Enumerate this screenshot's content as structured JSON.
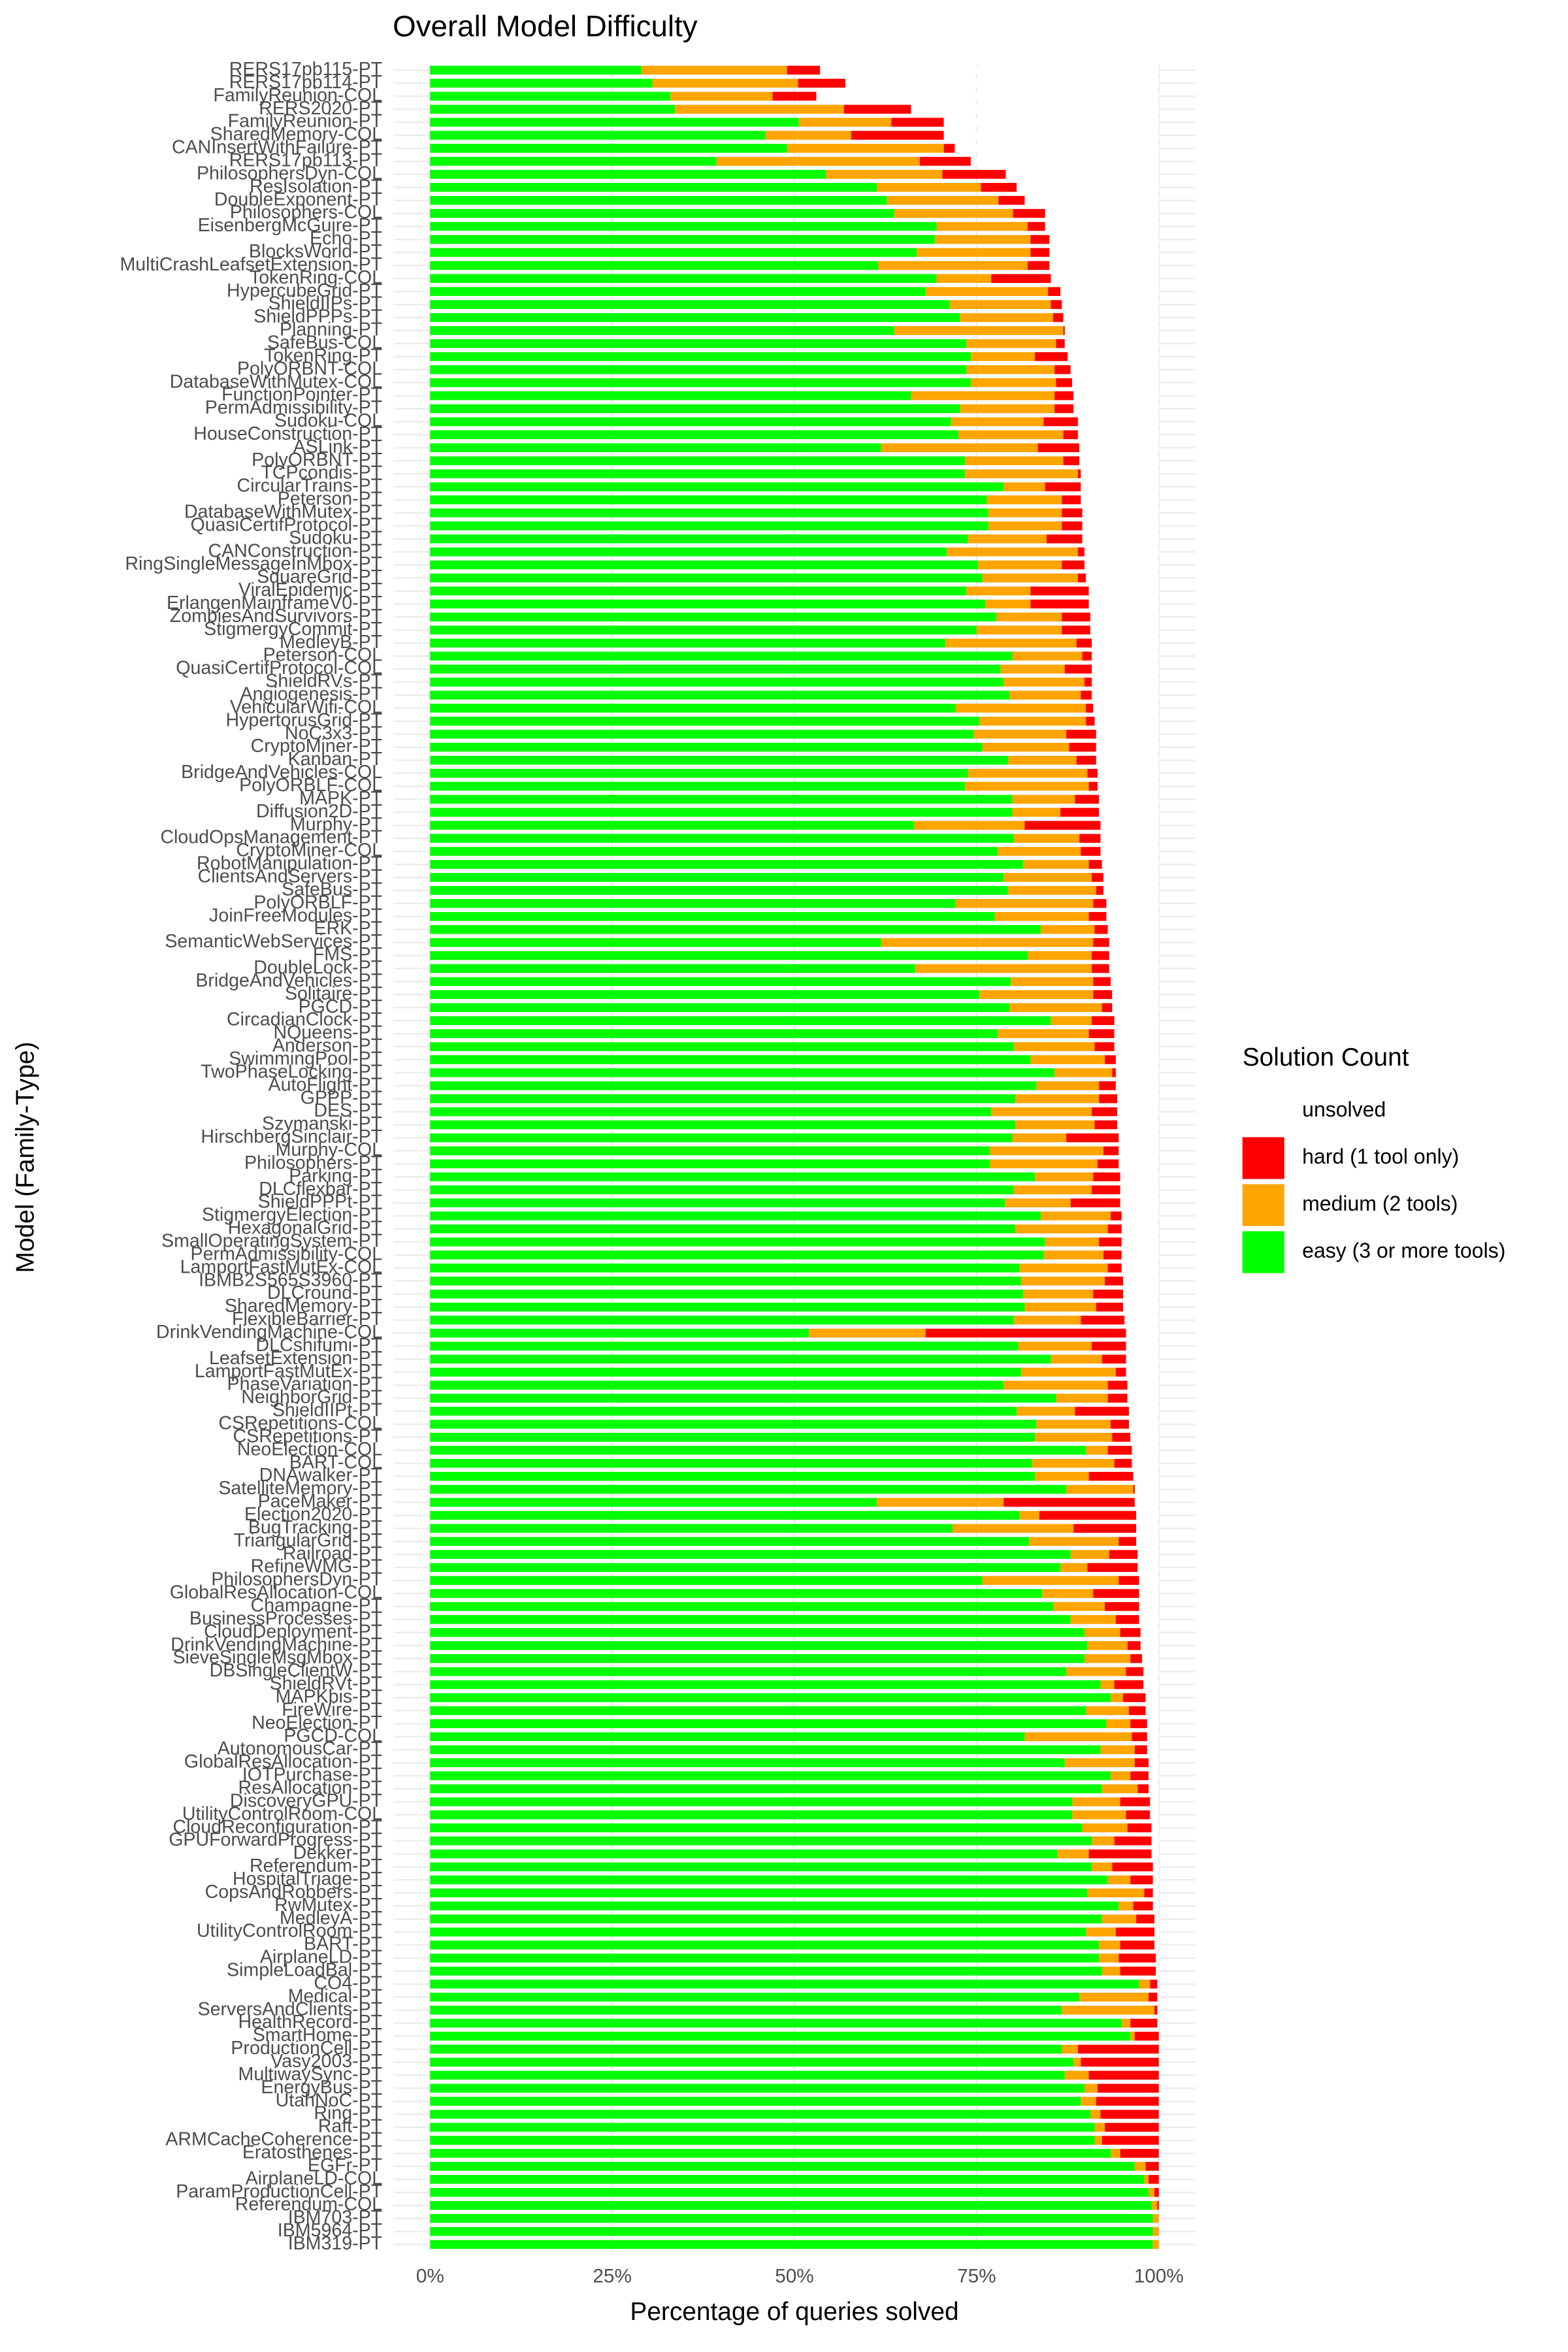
{
  "chart_data": {
    "type": "stacked_barh",
    "title": "Overall Model Difficulty",
    "x_label": "Percentage of queries solved",
    "y_label": "Model (Family-Type)",
    "legend_title": "Solution Count",
    "legend": "right",
    "grid": true,
    "categories": [
      "RERS17pb115-PT",
      "RERS17pb114-PT",
      "FamilyReunion-COL",
      "RERS2020-PT",
      "FamilyReunion-PT",
      "SharedMemory-COL",
      "CANInsertWithFailure-PT",
      "RERS17pb113-PT",
      "PhilosophersDyn-COL",
      "ResIsolation-PT",
      "DoubleExponent-PT",
      "Philosophers-COL",
      "EisenbergMcGuire-PT",
      "Echo-PT",
      "BlocksWorld-PT",
      "MultiCrashLeafsetExtension-PT",
      "TokenRing-COL",
      "HypercubeGrid-PT",
      "ShieldIIPs-PT",
      "ShieldPPPs-PT",
      "Planning-PT",
      "SafeBus-COL",
      "TokenRing-PT",
      "PolyORBNT-COL",
      "DatabaseWithMutex-COL",
      "FunctionPointer-PT",
      "PermAdmissibility-PT",
      "Sudoku-COL",
      "HouseConstruction-PT",
      "ASLink-PT",
      "PolyORBNT-PT",
      "TCPcondis-PT",
      "CircularTrains-PT",
      "Peterson-PT",
      "DatabaseWithMutex-PT",
      "QuasiCertifProtocol-PT",
      "Sudoku-PT",
      "CANConstruction-PT",
      "RingSingleMessageInMbox-PT",
      "SquareGrid-PT",
      "ViralEpidemic-PT",
      "ErlangenMainframeV0-PT",
      "ZombiesAndSurvivors-PT",
      "StigmergyCommit-PT",
      "MedleyB-PT",
      "Peterson-COL",
      "QuasiCertifProtocol-COL",
      "ShieldRVs-PT",
      "Angiogenesis-PT",
      "VehicularWifi-COL",
      "HypertorusGrid-PT",
      "NoC3x3-PT",
      "CryptoMiner-PT",
      "Kanban-PT",
      "BridgeAndVehicles-COL",
      "PolyORBLF-COL",
      "MAPK-PT",
      "Diffusion2D-PT",
      "Murphy-PT",
      "CloudOpsManagement-PT",
      "CryptoMiner-COL",
      "RobotManipulation-PT",
      "ClientsAndServers-PT",
      "SafeBus-PT",
      "PolyORBLF-PT",
      "JoinFreeModules-PT",
      "ERK-PT",
      "SemanticWebServices-PT",
      "FMS-PT",
      "DoubleLock-PT",
      "BridgeAndVehicles-PT",
      "Solitaire-PT",
      "PGCD-PT",
      "CircadianClock-PT",
      "NQueens-PT",
      "Anderson-PT",
      "SwimmingPool-PT",
      "TwoPhaseLocking-PT",
      "AutoFlight-PT",
      "GPPP-PT",
      "DES-PT",
      "Szymanski-PT",
      "HirschbergSinclair-PT",
      "Murphy-COL",
      "Philosophers-PT",
      "Parking-PT",
      "DLCflexbar-PT",
      "ShieldPPPt-PT",
      "StigmergyElection-PT",
      "HexagonalGrid-PT",
      "SmallOperatingSystem-PT",
      "PermAdmissibility-COL",
      "LamportFastMutEx-COL",
      "IBMB2S565S3960-PT",
      "DLCround-PT",
      "SharedMemory-PT",
      "FlexibleBarrier-PT",
      "DrinkVendingMachine-COL",
      "DLCshifumi-PT",
      "LeafsetExtension-PT",
      "LamportFastMutEx-PT",
      "PhaseVariation-PT",
      "NeighborGrid-PT",
      "ShieldIIPt-PT",
      "CSRepetitions-COL",
      "CSRepetitions-PT",
      "NeoElection-COL",
      "BART-COL",
      "DNAwalker-PT",
      "SatelliteMemory-PT",
      "PaceMaker-PT",
      "Election2020-PT",
      "BugTracking-PT",
      "TriangularGrid-PT",
      "Railroad-PT",
      "RefineWMG-PT",
      "PhilosophersDyn-PT",
      "GlobalResAllocation-COL",
      "Champagne-PT",
      "BusinessProcesses-PT",
      "CloudDeployment-PT",
      "DrinkVendingMachine-PT",
      "SieveSingleMsgMbox-PT",
      "DBSingleClientW-PT",
      "ShieldRVt-PT",
      "MAPKbis-PT",
      "FireWire-PT",
      "NeoElection-PT",
      "PGCD-COL",
      "AutonomousCar-PT",
      "GlobalResAllocation-PT",
      "IOTPurchase-PT",
      "ResAllocation-PT",
      "DiscoveryGPU-PT",
      "UtilityControlRoom-COL",
      "CloudReconfiguration-PT",
      "GPUForwardProgress-PT",
      "Dekker-PT",
      "Referendum-PT",
      "HospitalTriage-PT",
      "CopsAndRobbers-PT",
      "RwMutex-PT",
      "MedleyA-PT",
      "UtilityControlRoom-PT",
      "BART-PT",
      "AirplaneLD-PT",
      "SimpleLoadBal-PT",
      "CO4-PT",
      "Medical-PT",
      "ServersAndClients-PT",
      "HealthRecord-PT",
      "SmartHome-PT",
      "ProductionCell-PT",
      "Vasy2003-PT",
      "MultiwaySync-PT",
      "EnergyBus-PT",
      "UtahNoC-PT",
      "Ring-PT",
      "Raft-PT",
      "ARMCacheCoherence-PT",
      "Eratosthenes-PT",
      "EGFr-PT",
      "AirplaneLD-COL",
      "ParamProductionCell-PT",
      "Referendum-COL",
      "IBM703-PT",
      "IBM5964-PT",
      "IBM319-PT"
    ],
    "series": [
      {
        "name": "easy (3 or more tools)",
        "color": "#00ff00",
        "values": [
          29,
          30.5,
          33,
          33.6,
          50.6,
          46,
          49,
          39.3,
          54.3,
          61.3,
          62.7,
          63.7,
          69.5,
          69.3,
          66.8,
          61.5,
          69.5,
          68,
          71.3,
          72.7,
          63.7,
          73.6,
          74.2,
          73.6,
          74.2,
          66,
          72.7,
          71.5,
          72.5,
          61.9,
          73.4,
          73.4,
          78.7,
          76.4,
          76.6,
          76.6,
          73.8,
          70.9,
          75.2,
          75.8,
          73.6,
          76.2,
          77.7,
          75,
          70.7,
          79.9,
          78.3,
          78.7,
          79.5,
          72.1,
          75.4,
          74.6,
          75.8,
          79.3,
          73.8,
          73.4,
          79.9,
          79.9,
          66.4,
          80.1,
          77.9,
          81.4,
          78.7,
          79.3,
          72.1,
          77.5,
          83.8,
          61.9,
          82,
          66.6,
          79.7,
          75.4,
          79.5,
          85.2,
          77.9,
          80.1,
          82.4,
          85.7,
          83.2,
          80.3,
          77,
          80.3,
          79.9,
          76.8,
          76.8,
          83,
          80.1,
          78.9,
          83.8,
          80.3,
          84.4,
          84.2,
          80.9,
          81.1,
          81.4,
          81.6,
          80.1,
          52,
          80.7,
          85.2,
          81.1,
          78.7,
          85.9,
          80.5,
          83.2,
          83,
          90,
          82.6,
          83,
          87.3,
          61.3,
          80.9,
          71.7,
          82.2,
          87.9,
          86.5,
          75.8,
          84,
          85.5,
          87.9,
          89.8,
          90.2,
          89.8,
          87.3,
          92,
          93.4,
          90,
          92.8,
          81.6,
          92,
          87.1,
          93.4,
          92.2,
          88.1,
          88.1,
          89.5,
          90.8,
          86.1,
          90.8,
          93,
          90.2,
          94.5,
          92.2,
          90,
          91.8,
          91.8,
          92.2,
          97.3,
          89.1,
          86.7,
          94.9,
          96.1,
          86.7,
          88.3,
          87.1,
          89.8,
          89.3,
          90.6,
          91.2,
          91.2,
          93.4,
          96.7,
          98,
          98.6,
          99,
          99.2,
          99.2,
          99.2
        ]
      },
      {
        "name": "medium (2 tools)",
        "color": "#ffa500",
        "values": [
          20,
          20,
          14,
          23.2,
          12.7,
          11.8,
          21.5,
          27.9,
          16,
          14.3,
          15.3,
          16.3,
          12.5,
          13.1,
          15.6,
          20.5,
          7.5,
          16.8,
          13.9,
          12.8,
          23.2,
          12.3,
          8.8,
          12.1,
          11.7,
          19.7,
          13,
          12.7,
          14.4,
          21.5,
          13.5,
          15.5,
          5.7,
          10.3,
          10.1,
          10.1,
          10.8,
          18,
          11.5,
          13.1,
          8.8,
          6.2,
          9,
          11.7,
          18,
          9.6,
          8.8,
          11.1,
          9.8,
          17.9,
          14.6,
          12.7,
          11.9,
          9.4,
          16.4,
          17,
          8.6,
          6.6,
          15.2,
          9,
          11.4,
          9,
          12.1,
          12.1,
          18.9,
          12.9,
          7.4,
          29.1,
          8.8,
          24.2,
          11.3,
          15.6,
          12.7,
          5.6,
          12.5,
          11.1,
          10.2,
          7.9,
          8.6,
          11.5,
          13.8,
          10.9,
          7.4,
          15.6,
          14.8,
          8,
          10.7,
          9,
          9.6,
          12.7,
          7.4,
          8.2,
          12.1,
          11.5,
          9.6,
          9.8,
          9.2,
          16,
          10.1,
          7,
          13,
          14.3,
          7.1,
          8,
          10.2,
          10.6,
          3,
          11.3,
          7.4,
          9.2,
          17.4,
          2.7,
          16.6,
          12.3,
          5.3,
          3.7,
          18.7,
          7,
          7.1,
          6.2,
          4.9,
          5.5,
          6.3,
          8.2,
          1.9,
          1.7,
          5.9,
          3.3,
          14.7,
          4.7,
          9.6,
          2.7,
          4.9,
          6.6,
          7.4,
          6.2,
          3.1,
          4.3,
          2.8,
          3.1,
          7.8,
          2,
          4.7,
          4.1,
          2.9,
          2.7,
          2.5,
          1.5,
          9.5,
          12.7,
          1.2,
          0.6,
          2.2,
          1,
          3.3,
          1.8,
          2.1,
          1.4,
          1.4,
          1,
          1.3,
          1.5,
          0.6,
          0.8,
          0.8,
          0.8,
          0.8,
          0.8
        ]
      },
      {
        "name": "hard (1 tool only)",
        "color": "#ff0000",
        "values": [
          4.5,
          6.5,
          6,
          9.2,
          7.2,
          12.7,
          1.5,
          7,
          8.7,
          4.9,
          3.6,
          4.4,
          2.4,
          2.6,
          2.6,
          3,
          8.2,
          1.7,
          1.5,
          1.4,
          0.2,
          1.2,
          4.5,
          2.2,
          2.2,
          2.6,
          2.6,
          4.7,
          2,
          5.7,
          2.2,
          0.4,
          4.9,
          2.6,
          2.8,
          2.8,
          4.9,
          0.9,
          3.1,
          1.1,
          8,
          8,
          3.9,
          3.9,
          2.1,
          1.3,
          3.7,
          1,
          1.5,
          1,
          1.2,
          4.1,
          3.7,
          2.7,
          1.4,
          1.2,
          3.3,
          5.3,
          10.4,
          2.9,
          2.7,
          1.8,
          1.6,
          1,
          1.8,
          2.4,
          1.8,
          2.2,
          2.4,
          2.4,
          2.4,
          2.6,
          1.4,
          3.1,
          3.5,
          2.7,
          1.5,
          0.5,
          2.3,
          2.5,
          3.5,
          3.1,
          7.2,
          2.1,
          2.9,
          3.7,
          3.9,
          6.8,
          1.5,
          1.9,
          3.1,
          2.5,
          1.9,
          2.5,
          4.1,
          3.7,
          6,
          27.5,
          4.7,
          3.3,
          1.4,
          2.7,
          2.7,
          7.4,
          2.5,
          2.5,
          3.3,
          2.4,
          6.1,
          0.2,
          18,
          13.3,
          8.6,
          2.4,
          3.9,
          6.9,
          2.8,
          6.3,
          4.7,
          3.2,
          2.8,
          1.8,
          1.6,
          2.4,
          4,
          3.1,
          2.3,
          2.3,
          2.1,
          1.7,
          1.9,
          2.5,
          1.5,
          4.1,
          3.3,
          3.3,
          5.1,
          8.6,
          5.6,
          3.1,
          1.2,
          2.7,
          2.5,
          5.3,
          4.7,
          5.1,
          4.9,
          1,
          1.2,
          0.4,
          3.7,
          3.3,
          11.1,
          10.7,
          9.6,
          8.4,
          8.6,
          8,
          7.4,
          7.8,
          5.3,
          1.8,
          1.4,
          0.6,
          0.2,
          0,
          0,
          0
        ]
      },
      {
        "name": "unsolved",
        "color": "#ffffff",
        "values": [
          46.5,
          43,
          47,
          34,
          29.5,
          29.5,
          28,
          25.8,
          21,
          19.5,
          18.4,
          15.6,
          15.6,
          15,
          15,
          15,
          14.8,
          13.5,
          13.3,
          13.1,
          12.9,
          12.9,
          12.5,
          12.1,
          11.9,
          11.7,
          11.7,
          11.1,
          11.1,
          10.9,
          10.9,
          10.7,
          10.7,
          10.7,
          10.5,
          10.5,
          10.5,
          10.2,
          10.2,
          10,
          9.6,
          9.6,
          9.4,
          9.4,
          9.2,
          9.2,
          9.2,
          9.2,
          9.2,
          9,
          8.8,
          8.6,
          8.6,
          8.6,
          8.4,
          8.4,
          8.2,
          8.2,
          8,
          8,
          8,
          7.8,
          7.6,
          7.6,
          7.2,
          7.2,
          7,
          6.8,
          6.8,
          6.8,
          6.6,
          6.4,
          6.4,
          6.1,
          6.1,
          6.1,
          5.9,
          5.9,
          5.9,
          5.7,
          5.7,
          5.7,
          5.5,
          5.5,
          5.5,
          5.3,
          5.3,
          5.3,
          5.1,
          5.1,
          5.1,
          5.1,
          5.1,
          4.9,
          4.9,
          4.9,
          4.7,
          4.5,
          4.5,
          4.5,
          4.5,
          4.3,
          4.3,
          4.1,
          4.1,
          3.9,
          3.7,
          3.7,
          3.5,
          3.3,
          3.3,
          3.1,
          3.1,
          3.1,
          2.9,
          2.9,
          2.7,
          2.7,
          2.7,
          2.7,
          2.5,
          2.5,
          2.3,
          2.1,
          2.1,
          1.8,
          1.8,
          1.6,
          1.6,
          1.6,
          1.4,
          1.4,
          1.4,
          1.2,
          1.2,
          1,
          1,
          1,
          0.8,
          0.8,
          0.8,
          0.8,
          0.6,
          0.6,
          0.6,
          0.4,
          0.4,
          0.2,
          0.2,
          0.2,
          0.2,
          0,
          0,
          0,
          0,
          0,
          0,
          0,
          0,
          0,
          0,
          0,
          0,
          0,
          0,
          0,
          0,
          0
        ]
      }
    ],
    "xlim": [
      -5,
      105
    ],
    "xticks": [
      {
        "value": 0,
        "label": "0%"
      },
      {
        "value": 25,
        "label": "25%"
      },
      {
        "value": 50,
        "label": "50%"
      },
      {
        "value": 75,
        "label": "75%"
      },
      {
        "value": 100,
        "label": "100%"
      }
    ]
  }
}
